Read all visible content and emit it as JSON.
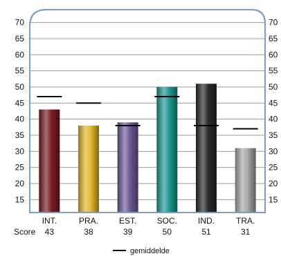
{
  "chart_data": {
    "type": "bar",
    "categories": [
      "INT.",
      "PRA.",
      "EST.",
      "SOC.",
      "IND.",
      "TRA."
    ],
    "score_label": "Score",
    "series": [
      {
        "values": [
          43,
          38,
          39,
          50,
          51,
          31
        ],
        "colors": [
          "#7a1e24",
          "#e6b830",
          "#6e5a9a",
          "#1f9a92",
          "#2b2b2b",
          "#a9a9a9"
        ]
      },
      {
        "name": "gemiddelde",
        "values": [
          47,
          45,
          38,
          47,
          38,
          37
        ]
      }
    ],
    "y_ticks": [
      15,
      20,
      25,
      30,
      35,
      40,
      45,
      50,
      55,
      60,
      65,
      70
    ],
    "ylim": [
      11,
      74
    ],
    "grid": true,
    "legend": {
      "position": "bottom-center",
      "label": "gemiddelde"
    },
    "frame_color": "#7a9cc6"
  }
}
